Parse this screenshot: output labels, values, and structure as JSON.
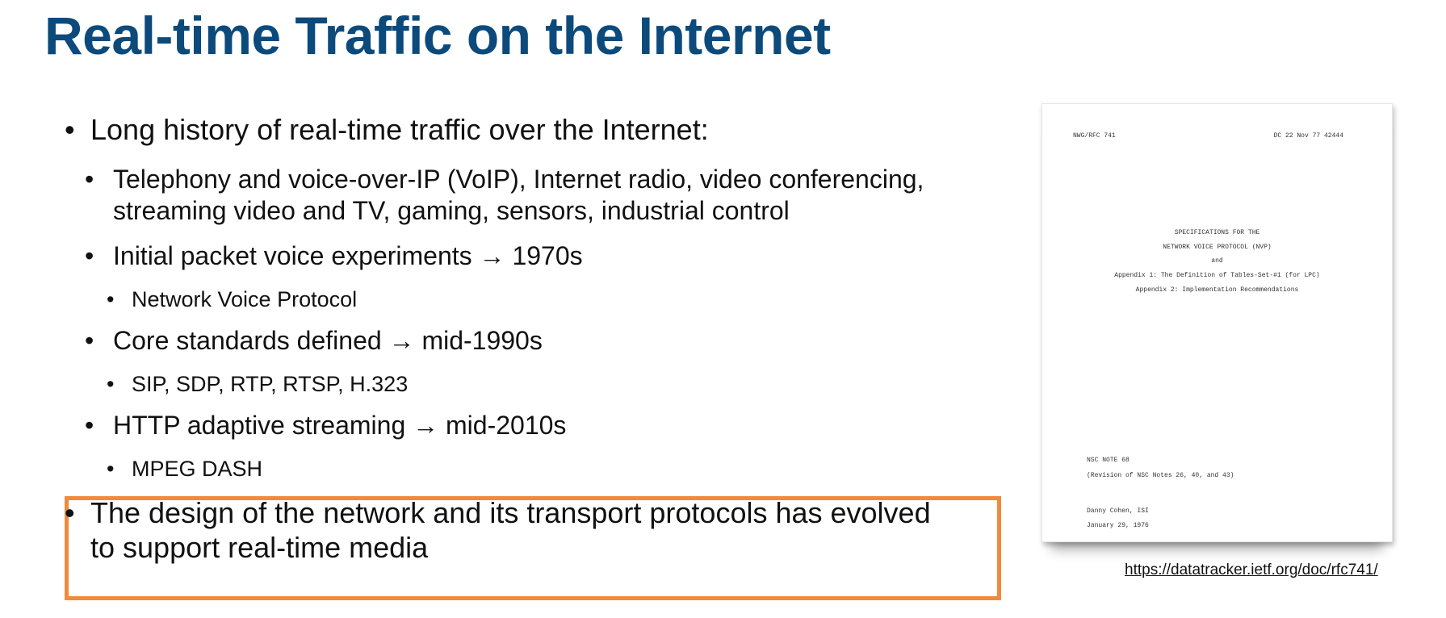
{
  "slide": {
    "title": "Real-time Traffic on the Internet",
    "bullet_char": "•",
    "bullets": [
      {
        "text": "Long history of real-time traffic over the Internet:"
      },
      {
        "text": "Telephony and voice-over-IP (VoIP), Internet radio, video conferencing,",
        "text2": "streaming video and TV, gaming, sensors, industrial control"
      },
      {
        "text": "Initial packet voice experiments → 1970s"
      },
      {
        "text": "Network Voice Protocol"
      },
      {
        "text": "Core standards defined → mid-1990s"
      },
      {
        "text": "SIP, SDP, RTP, RTSP, H.323"
      },
      {
        "text": "HTTP adaptive streaming → mid-2010s"
      },
      {
        "text": "MPEG DASH"
      }
    ],
    "highlight": {
      "line1": "The design of the network and its transport protocols has evolved",
      "line2": "to support real-time media",
      "border_color": "#f08a3c"
    },
    "title_color": "#0c4a7c"
  },
  "document": {
    "header_left": "NWG/RFC 741",
    "header_right": "DC 22 Nov 77 42444",
    "lines": [
      "SPECIFICATIONS FOR THE",
      "NETWORK VOICE PROTOCOL (NVP)",
      "and",
      "Appendix 1:  The Definition of Tables-Set-#1 (for LPC)",
      "Appendix 2:  Implementation Recommendations"
    ],
    "note": "NSC NOTE 68",
    "revision": "(Revision of NSC Notes 26, 40, and 43)",
    "author": "Danny Cohen, ISI",
    "date": "January 29, 1976"
  },
  "link": {
    "url_text": "https://datatracker.ietf.org/doc/rfc741/"
  }
}
